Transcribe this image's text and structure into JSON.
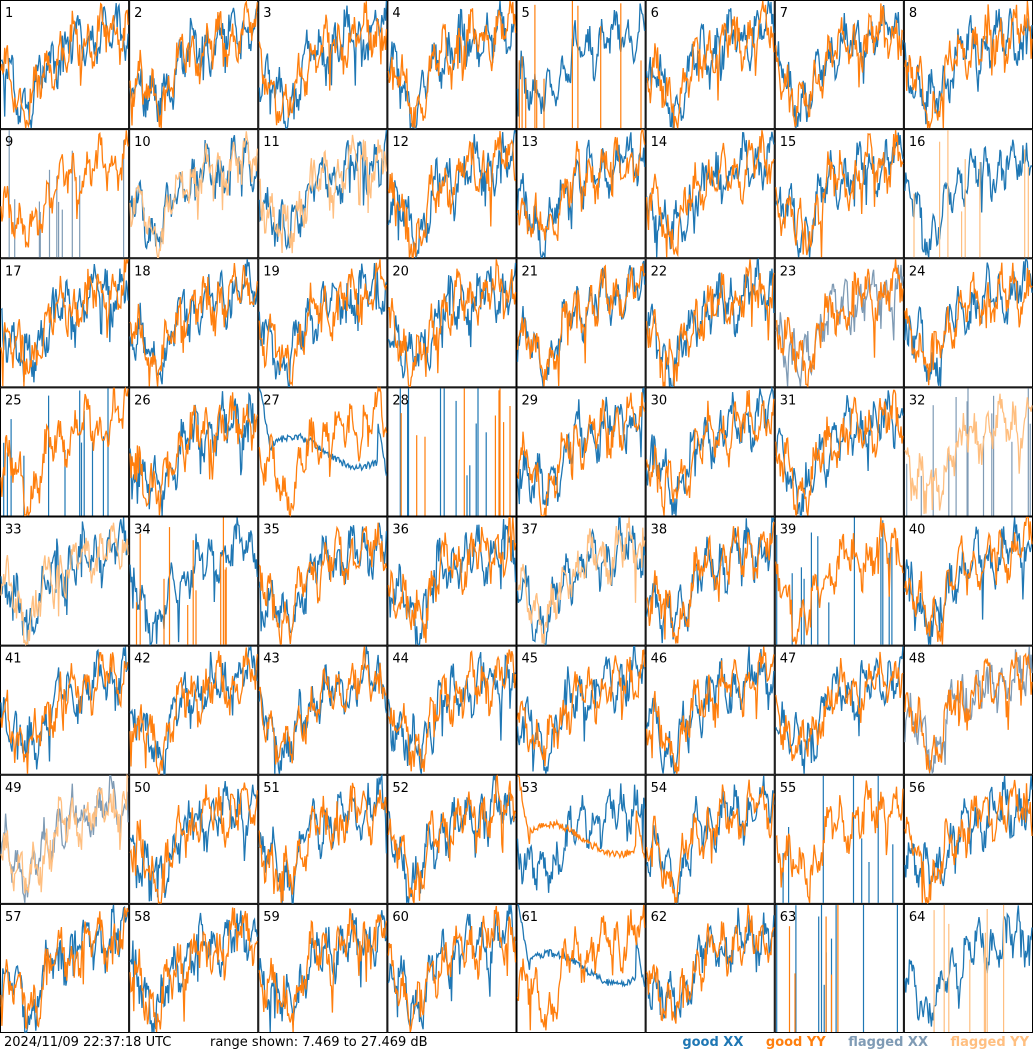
{
  "footer": {
    "timestamp": "2024/11/09 22:37:18 UTC",
    "range_text": "range shown: 7.469 to 27.469 dB"
  },
  "legend": [
    {
      "label": "good XX",
      "color": "#1f77b4"
    },
    {
      "label": "good YY",
      "color": "#ff7f0e"
    },
    {
      "label": "flagged XX",
      "color": "#7f9bb5"
    },
    {
      "label": "flagged YY",
      "color": "#ffbf80"
    }
  ],
  "chart_data": {
    "type": "line",
    "layout": "8x8 small multiples",
    "y_range_db": [
      7.469,
      27.469
    ],
    "panels": [
      {
        "id": "1",
        "xx": "good",
        "yy": "good"
      },
      {
        "id": "2",
        "xx": "good",
        "yy": "good"
      },
      {
        "id": "3",
        "xx": "good",
        "yy": "good"
      },
      {
        "id": "4",
        "xx": "good",
        "yy": "good"
      },
      {
        "id": "5",
        "xx": "good",
        "yy": "spiky"
      },
      {
        "id": "6",
        "xx": "good",
        "yy": "good"
      },
      {
        "id": "7",
        "xx": "good",
        "yy": "good"
      },
      {
        "id": "8",
        "xx": "good",
        "yy": "good"
      },
      {
        "id": "9",
        "xx": "flagged-spiky",
        "yy": "good"
      },
      {
        "id": "10",
        "xx": "good",
        "yy": "flagged"
      },
      {
        "id": "11",
        "xx": "good",
        "yy": "flagged"
      },
      {
        "id": "12",
        "xx": "good",
        "yy": "good"
      },
      {
        "id": "13",
        "xx": "good",
        "yy": "good"
      },
      {
        "id": "14",
        "xx": "good",
        "yy": "good"
      },
      {
        "id": "15",
        "xx": "good",
        "yy": "good"
      },
      {
        "id": "16",
        "xx": "good",
        "yy": "spiky-flagged"
      },
      {
        "id": "17",
        "xx": "good",
        "yy": "good"
      },
      {
        "id": "18",
        "xx": "good",
        "yy": "good"
      },
      {
        "id": "19",
        "xx": "good",
        "yy": "good"
      },
      {
        "id": "20",
        "xx": "good",
        "yy": "good"
      },
      {
        "id": "21",
        "xx": "good",
        "yy": "good"
      },
      {
        "id": "22",
        "xx": "good",
        "yy": "good"
      },
      {
        "id": "23",
        "xx": "flagged",
        "yy": "good"
      },
      {
        "id": "24",
        "xx": "good",
        "yy": "good"
      },
      {
        "id": "25",
        "xx": "spiky",
        "yy": "good"
      },
      {
        "id": "26",
        "xx": "good",
        "yy": "good"
      },
      {
        "id": "27",
        "xx": "bandpass",
        "yy": "good"
      },
      {
        "id": "28",
        "xx": "spiky",
        "yy": "spiky"
      },
      {
        "id": "29",
        "xx": "good",
        "yy": "good"
      },
      {
        "id": "30",
        "xx": "good",
        "yy": "good"
      },
      {
        "id": "31",
        "xx": "good",
        "yy": "good"
      },
      {
        "id": "32",
        "xx": "spiky-flagged",
        "yy": "flagged"
      },
      {
        "id": "33",
        "xx": "good",
        "yy": "flagged"
      },
      {
        "id": "34",
        "xx": "good",
        "yy": "spiky"
      },
      {
        "id": "35",
        "xx": "good",
        "yy": "good"
      },
      {
        "id": "36",
        "xx": "good",
        "yy": "good"
      },
      {
        "id": "37",
        "xx": "good",
        "yy": "flagged"
      },
      {
        "id": "38",
        "xx": "good",
        "yy": "good"
      },
      {
        "id": "39",
        "xx": "spiky",
        "yy": "good"
      },
      {
        "id": "40",
        "xx": "good",
        "yy": "good"
      },
      {
        "id": "41",
        "xx": "good",
        "yy": "good"
      },
      {
        "id": "42",
        "xx": "good",
        "yy": "good"
      },
      {
        "id": "43",
        "xx": "good",
        "yy": "good"
      },
      {
        "id": "44",
        "xx": "good",
        "yy": "good"
      },
      {
        "id": "45",
        "xx": "good",
        "yy": "good"
      },
      {
        "id": "46",
        "xx": "good",
        "yy": "good"
      },
      {
        "id": "47",
        "xx": "good",
        "yy": "good"
      },
      {
        "id": "48",
        "xx": "flagged",
        "yy": "good"
      },
      {
        "id": "49",
        "xx": "flagged",
        "yy": "flagged"
      },
      {
        "id": "50",
        "xx": "good",
        "yy": "good"
      },
      {
        "id": "51",
        "xx": "good",
        "yy": "good"
      },
      {
        "id": "52",
        "xx": "good",
        "yy": "good"
      },
      {
        "id": "53",
        "xx": "good",
        "yy": "bandpass"
      },
      {
        "id": "54",
        "xx": "good",
        "yy": "good"
      },
      {
        "id": "55",
        "xx": "spiky",
        "yy": "good"
      },
      {
        "id": "56",
        "xx": "good",
        "yy": "good"
      },
      {
        "id": "57",
        "xx": "good",
        "yy": "good"
      },
      {
        "id": "58",
        "xx": "good",
        "yy": "good"
      },
      {
        "id": "59",
        "xx": "good",
        "yy": "good"
      },
      {
        "id": "60",
        "xx": "good",
        "yy": "good"
      },
      {
        "id": "61",
        "xx": "bandpass",
        "yy": "good"
      },
      {
        "id": "62",
        "xx": "good",
        "yy": "good"
      },
      {
        "id": "63",
        "xx": "spiky",
        "yy": "spiky"
      },
      {
        "id": "64",
        "xx": "good",
        "yy": "spiky-flagged"
      }
    ]
  }
}
